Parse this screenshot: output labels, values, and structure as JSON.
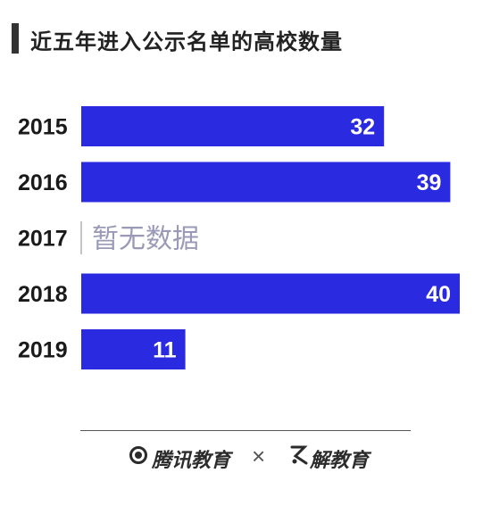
{
  "title": "近五年进入公示名单的高校数量",
  "colors": {
    "bar": "#2a2ae0",
    "bar_label": "#ffffff",
    "category": "#1a1a1a",
    "nodata": "#9a9ab8",
    "nodata_line": "#b0b0b0"
  },
  "footer": {
    "brand_left": "腾讯教育",
    "separator": "×",
    "brand_right": "解教育"
  },
  "chart_data": {
    "type": "bar",
    "orientation": "horizontal",
    "categories": [
      "2015",
      "2016",
      "2017",
      "2018",
      "2019"
    ],
    "values": [
      32,
      39,
      null,
      40,
      11
    ],
    "value_labels": [
      "32",
      "39",
      "暂无数据",
      "40",
      "11"
    ],
    "xlim": [
      0,
      40
    ],
    "grid": false,
    "legend": "none"
  }
}
